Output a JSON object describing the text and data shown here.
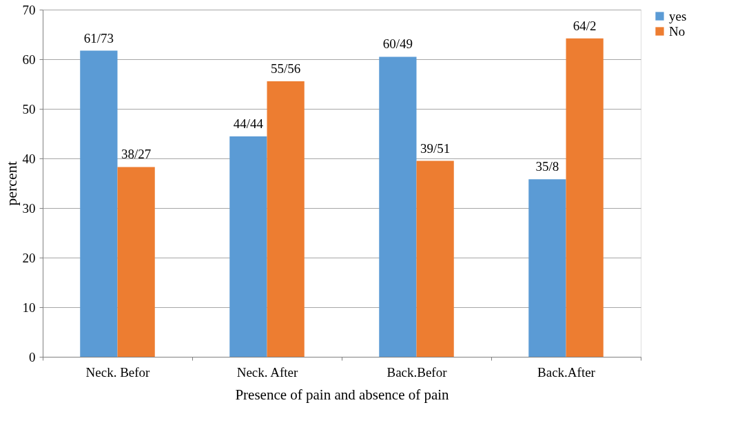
{
  "chart_data": {
    "type": "bar",
    "categories": [
      "Neck. Befor",
      "Neck. After",
      "Back.Befor",
      "Back.After"
    ],
    "xlabel": "Presence of pain and absence of pain",
    "ylabel": "percent",
    "series": [
      {
        "name": "yes",
        "color": "#5b9bd5",
        "values": [
          61.73,
          44.44,
          60.49,
          35.8
        ],
        "value_labels": [
          "61/73",
          "44/44",
          "60/49",
          "35/8"
        ]
      },
      {
        "name": "No",
        "color": "#ed7d31",
        "values": [
          38.27,
          55.56,
          39.51,
          64.2
        ],
        "value_labels": [
          "38/27",
          "55/56",
          "39/51",
          "64/2"
        ]
      }
    ],
    "ylim": [
      0,
      70
    ],
    "yticks": [
      0,
      10,
      20,
      30,
      40,
      50,
      60,
      70
    ],
    "grid": "y",
    "legend": "right"
  }
}
